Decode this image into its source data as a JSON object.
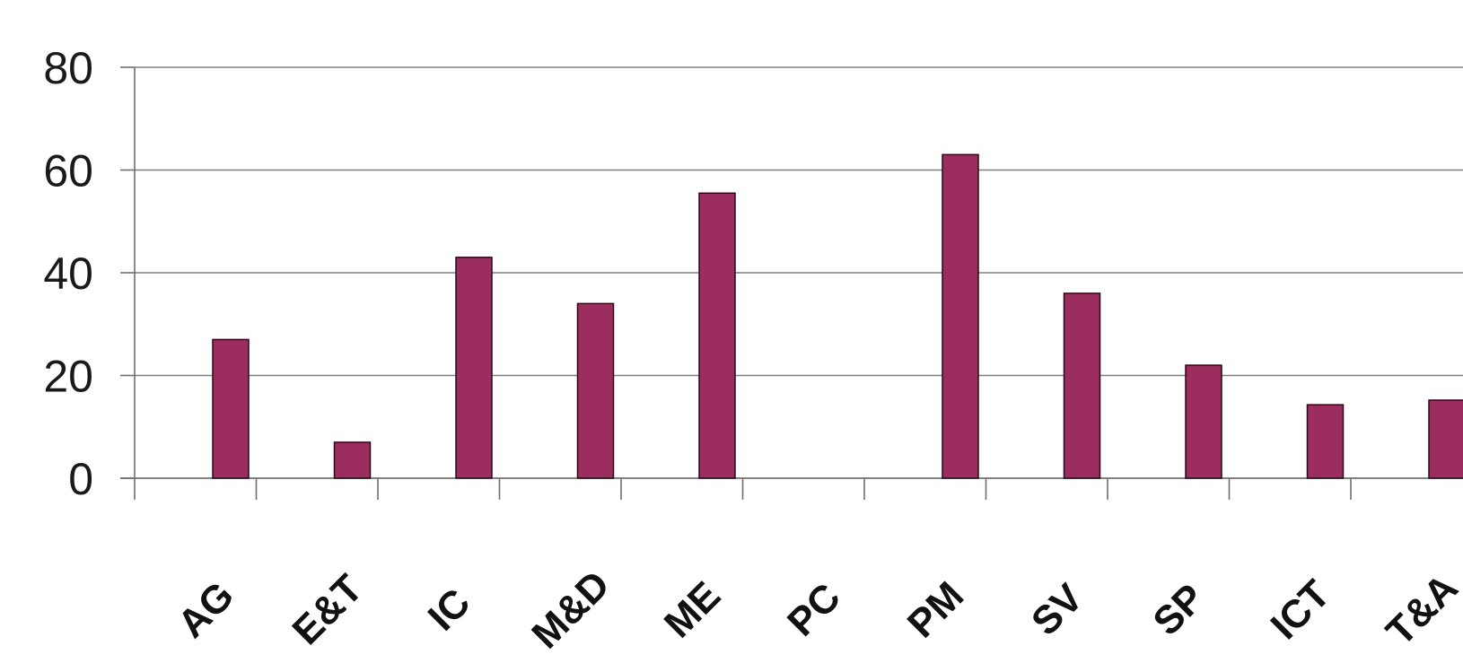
{
  "chart_data": {
    "type": "bar",
    "title": "",
    "xlabel": "",
    "ylabel": "",
    "categories": [
      "AG",
      "E&T",
      "IC",
      "M&D",
      "ME",
      "PC",
      "PM",
      "SV",
      "SP",
      "ICT",
      "T&A"
    ],
    "values": [
      27,
      7,
      43,
      34,
      55.5,
      0,
      63,
      36,
      22,
      14.3,
      15.2
    ],
    "ylim": [
      0,
      80
    ],
    "yticks": [
      "0",
      "20",
      "40",
      "60",
      "80"
    ],
    "grid": true,
    "legend": "none",
    "colors": {
      "bar": "#9b2d5f",
      "bar_edge": "#2a0a18",
      "grid": "#808080",
      "axis": "#707070",
      "text": "#1a1a1a"
    }
  }
}
